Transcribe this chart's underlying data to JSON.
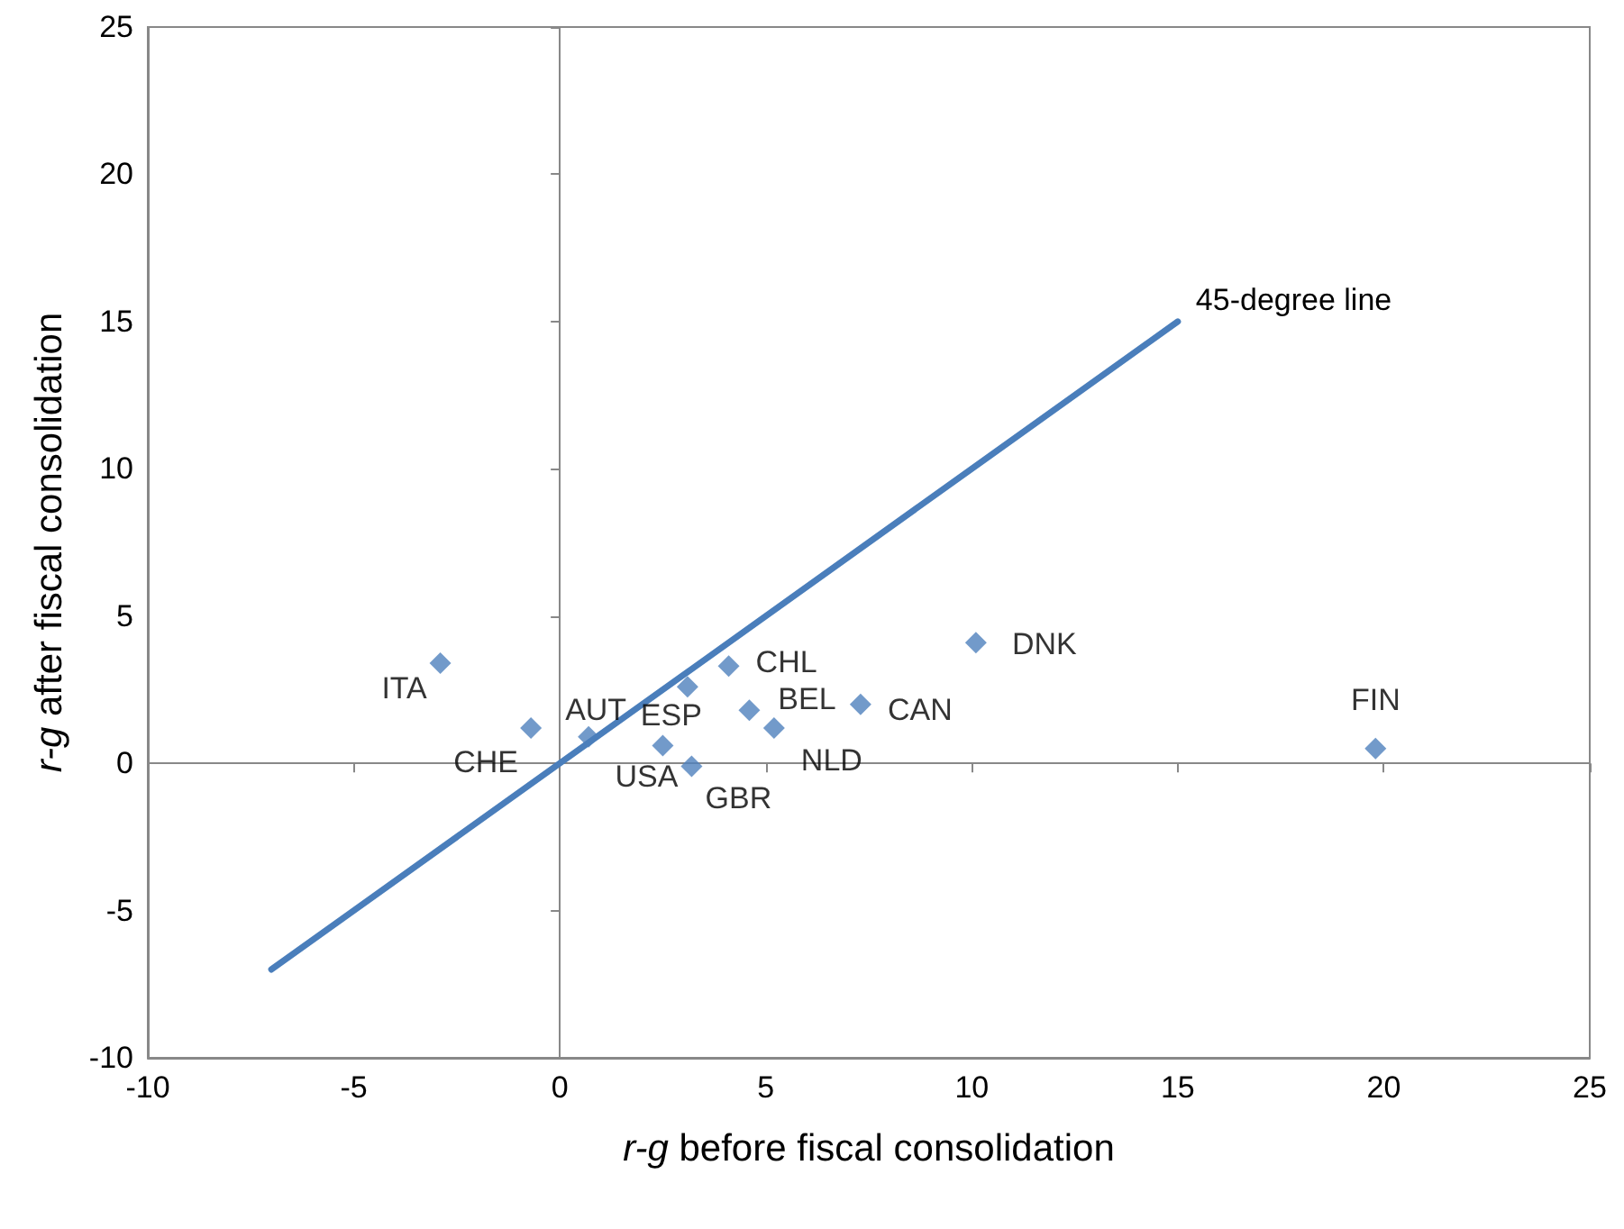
{
  "chart_data": {
    "type": "scatter",
    "xlabel": "r-g before fiscal consolidation",
    "ylabel": "r-g after fiscal consolidation",
    "x": [
      -2.9,
      -0.7,
      0.7,
      3.1,
      2.5,
      4.1,
      4.6,
      3.2,
      5.2,
      7.3,
      10.1,
      19.8
    ],
    "series": [
      {
        "color": "#4f81bd",
        "marker": "diamond",
        "values": [
          3.4,
          1.2,
          0.9,
          2.6,
          0.6,
          3.3,
          1.8,
          -0.1,
          1.2,
          2.0,
          4.1,
          0.5
        ]
      },
      {
        "type": "line",
        "name": "45-degree line",
        "color": "#4a7ebb",
        "x": [
          -7,
          15
        ],
        "values": [
          -7,
          15
        ],
        "marker": "none"
      }
    ],
    "annotations": [
      {
        "text": "ITA",
        "x": -2.9,
        "y": 3.4
      },
      {
        "text": "CHE",
        "x": -0.7,
        "y": 1.2
      },
      {
        "text": "AUT",
        "x": 0.7,
        "y": 0.9
      },
      {
        "text": "ESP",
        "x": 3.1,
        "y": 2.6
      },
      {
        "text": "USA",
        "x": 2.5,
        "y": 0.6
      },
      {
        "text": "CHL",
        "x": 4.1,
        "y": 3.3
      },
      {
        "text": "BEL",
        "x": 4.6,
        "y": 1.8
      },
      {
        "text": "GBR",
        "x": 3.2,
        "y": -0.1
      },
      {
        "text": "NLD",
        "x": 5.2,
        "y": 1.2
      },
      {
        "text": "CAN",
        "x": 7.3,
        "y": 2.0
      },
      {
        "text": "DNK",
        "x": 10.1,
        "y": 4.1
      },
      {
        "text": "FIN",
        "x": 19.8,
        "y": 0.5
      }
    ],
    "xlim": [
      -10,
      25
    ],
    "xticks": [
      -10,
      -5,
      0,
      5,
      10,
      15,
      20,
      25
    ],
    "ylim": [
      -10,
      25
    ],
    "yticks": [
      -10,
      -5,
      0,
      5,
      10,
      15,
      20,
      25
    ],
    "legend": false
  }
}
